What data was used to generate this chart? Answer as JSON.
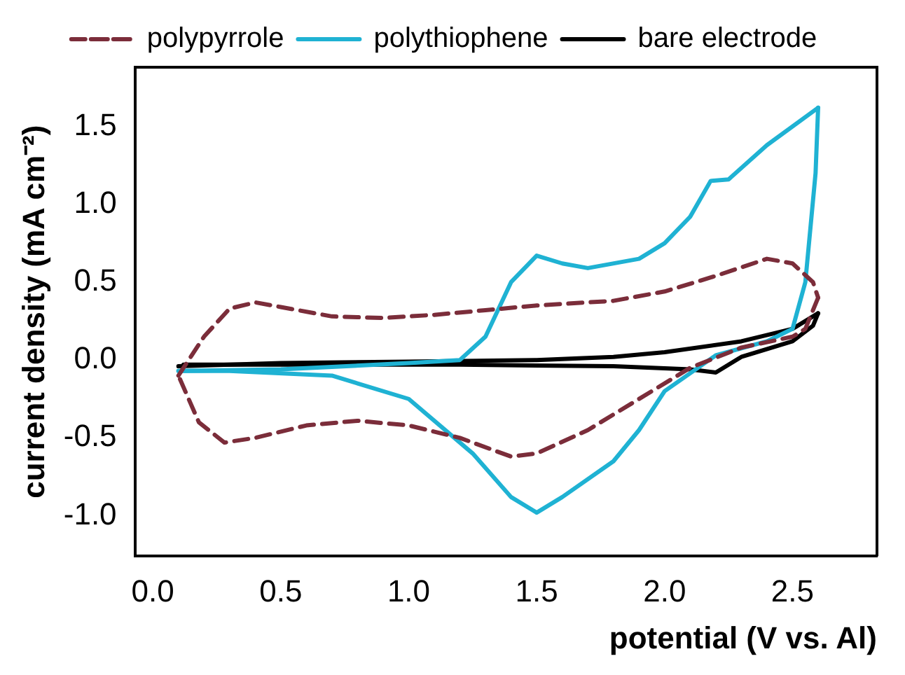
{
  "chart_data": {
    "type": "line",
    "xlabel": "potential (V vs. Al)",
    "ylabel": "current density (mA cm⁻²)",
    "xlim": [
      -0.07,
      2.83
    ],
    "ylim": [
      -1.26,
      1.88
    ],
    "xticks": [
      {
        "value": 0,
        "label": "0.0"
      },
      0.5,
      {
        "value": 1,
        "label": "1.0"
      },
      1.5,
      {
        "value": 2,
        "label": "2.0"
      },
      2.5
    ],
    "yticks": [
      {
        "value": -1,
        "label": "-1.0"
      },
      -0.5,
      {
        "value": 0,
        "label": "0.0"
      },
      0.5,
      {
        "value": 1,
        "label": "1.0"
      },
      1.5
    ],
    "grid": false,
    "legend": "top",
    "marker": "none",
    "series": [
      {
        "name": "polypyrrole",
        "color": "#7b2d3a",
        "line_style": "dashed",
        "x": [
          0.1,
          0.2,
          0.3,
          0.4,
          0.5,
          0.7,
          0.9,
          1.1,
          1.3,
          1.5,
          1.8,
          2.0,
          2.2,
          2.4,
          2.5,
          2.58,
          2.6
        ],
        "values": [
          -0.1,
          0.15,
          0.33,
          0.37,
          0.34,
          0.28,
          0.27,
          0.29,
          0.32,
          0.35,
          0.38,
          0.44,
          0.54,
          0.65,
          0.62,
          0.5,
          0.4
        ]
      },
      {
        "color": "#7b2d3a",
        "line_style": "dashed",
        "x": [
          2.6,
          2.55,
          2.5,
          2.3,
          2.1,
          1.9,
          1.7,
          1.5,
          1.4,
          1.2,
          1.0,
          0.8,
          0.6,
          0.4,
          0.28,
          0.18,
          0.1
        ],
        "values": [
          0.4,
          0.2,
          0.15,
          0.08,
          -0.05,
          -0.25,
          -0.45,
          -0.6,
          -0.62,
          -0.5,
          -0.42,
          -0.39,
          -0.42,
          -0.5,
          -0.53,
          -0.4,
          -0.1
        ]
      },
      {
        "name": "polythiophene",
        "color": "#1fb2d3",
        "line_style": "solid",
        "x": [
          0.1,
          0.5,
          1.0,
          1.2,
          1.3,
          1.4,
          1.5,
          1.6,
          1.7,
          1.9,
          2.0,
          2.1,
          2.18,
          2.25,
          2.4,
          2.6
        ],
        "values": [
          -0.07,
          -0.06,
          -0.02,
          0.0,
          0.15,
          0.5,
          0.67,
          0.62,
          0.59,
          0.65,
          0.75,
          0.92,
          1.15,
          1.16,
          1.38,
          1.62
        ]
      },
      {
        "color": "#1fb2d3",
        "line_style": "solid",
        "x": [
          2.6,
          2.59,
          2.55,
          2.5,
          2.4,
          2.2,
          2.0,
          1.9,
          1.8,
          1.6,
          1.5,
          1.4,
          1.25,
          1.0,
          0.7,
          0.3,
          0.1
        ],
        "values": [
          1.62,
          1.2,
          0.5,
          0.2,
          0.12,
          0.03,
          -0.2,
          -0.45,
          -0.65,
          -0.88,
          -0.98,
          -0.88,
          -0.6,
          -0.25,
          -0.1,
          -0.07,
          -0.07
        ]
      },
      {
        "name": "bare electrode",
        "color": "#000000",
        "line_style": "solid",
        "x": [
          0.1,
          0.5,
          1.0,
          1.5,
          1.8,
          2.0,
          2.3,
          2.5,
          2.6
        ],
        "values": [
          -0.04,
          -0.02,
          -0.01,
          0.0,
          0.02,
          0.05,
          0.12,
          0.2,
          0.3
        ]
      },
      {
        "color": "#000000",
        "line_style": "solid",
        "x": [
          2.6,
          2.58,
          2.5,
          2.3,
          2.2,
          2.1,
          1.8,
          1.2,
          0.5,
          0.12
        ],
        "values": [
          0.3,
          0.22,
          0.12,
          0.02,
          -0.08,
          -0.06,
          -0.04,
          -0.03,
          -0.03,
          -0.03
        ]
      }
    ]
  }
}
